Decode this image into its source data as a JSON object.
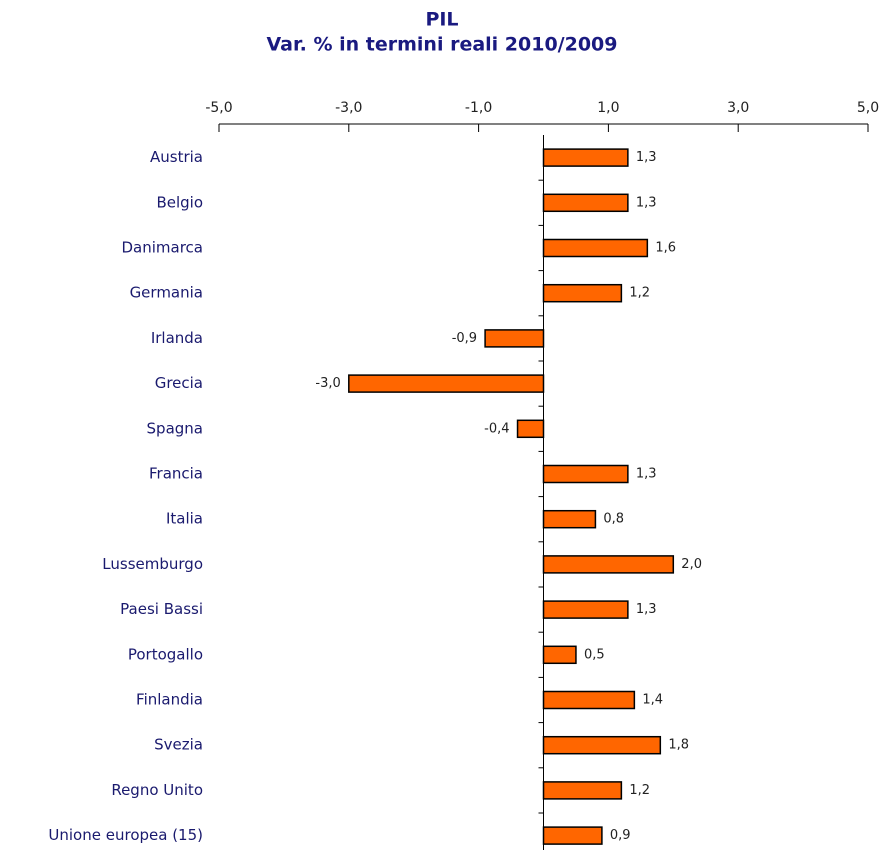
{
  "chart_data": {
    "type": "bar",
    "orientation": "horizontal",
    "title": "PIL",
    "subtitle": "Var. % in termini reali 2010/2009",
    "categories": [
      "Austria",
      "Belgio",
      "Danimarca",
      "Germania",
      "Irlanda",
      "Grecia",
      "Spagna",
      "Francia",
      "Italia",
      "Lussemburgo",
      "Paesi Bassi",
      "Portogallo",
      "Finlandia",
      "Svezia",
      "Regno Unito",
      "Unione europea (15)"
    ],
    "values": [
      1.3,
      1.3,
      1.6,
      1.2,
      -0.9,
      -3.0,
      -0.4,
      1.3,
      0.8,
      2.0,
      1.3,
      0.5,
      1.4,
      1.8,
      1.2,
      0.9
    ],
    "value_labels": [
      "1,3",
      "1,3",
      "1,6",
      "1,2",
      "-0,9",
      "-3,0",
      "-0,4",
      "1,3",
      "0,8",
      "2,0",
      "1,3",
      "0,5",
      "1,4",
      "1,8",
      "1,2",
      "0,9"
    ],
    "color": "#ff6600",
    "xlim": [
      -5,
      5
    ],
    "xticks": [
      {
        "value": -5,
        "label": "-5,0"
      },
      {
        "value": -3,
        "label": "-3,0"
      },
      {
        "value": -1,
        "label": "-1,0"
      },
      {
        "value": 1,
        "label": "1,0"
      },
      {
        "value": 3,
        "label": "3,0"
      },
      {
        "value": 5,
        "label": "5,0"
      }
    ],
    "grid": false
  }
}
